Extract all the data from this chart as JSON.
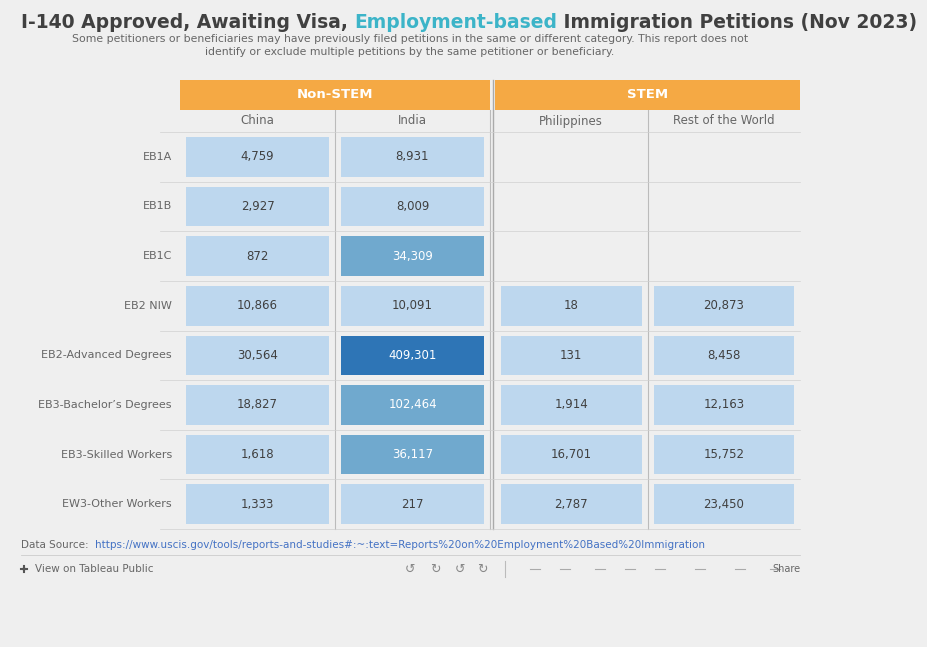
{
  "title_black1": "I-140 Approved, Awaiting Visa, ",
  "title_colored": "Employment-based",
  "title_black2": " Immigration Petitions (Nov 2023)",
  "subtitle_line1": "Some petitioners or beneficiaries may have previously filed petitions in the same or different category. This report does not",
  "subtitle_line2": "identify or exclude multiple petitions by the same petitioner or beneficiary.",
  "col_keys": [
    "China",
    "India",
    "Philippines",
    "Rest of the World"
  ],
  "rows": [
    "EB1A",
    "EB1B",
    "EB1C",
    "EB2 NIW",
    "EB2-Advanced Degrees",
    "EB3-Bachelor’s Degrees",
    "EB3-Skilled Workers",
    "EW3-Other Workers"
  ],
  "data_China": [
    4759,
    2927,
    872,
    10866,
    30564,
    18827,
    1618,
    1333
  ],
  "data_India": [
    8931,
    8009,
    34309,
    10091,
    409301,
    102464,
    36117,
    217
  ],
  "data_Philippines": [
    null,
    null,
    null,
    18,
    131,
    1914,
    16701,
    2787
  ],
  "data_ROW": [
    null,
    null,
    null,
    20873,
    8458,
    12163,
    15752,
    23450
  ],
  "header_color": "#F5A944",
  "cell_light": "#BDD7EE",
  "cell_medium": "#70A9CE",
  "cell_dark": "#2E75B6",
  "title_color": "#3CB4C8",
  "text_dark": "#404040",
  "text_medium": "#666666",
  "bg_color": "#EFEFEF",
  "white": "#FFFFFF",
  "link_color": "#4472C4",
  "data_source_text": "Data Source:  ",
  "data_source_url": "https://www.uscis.gov/tools/reports-and-studies#:~:text=Reports%20on%20Employment%20Based%20Immigration",
  "footer_text": "View on Tableau Public"
}
